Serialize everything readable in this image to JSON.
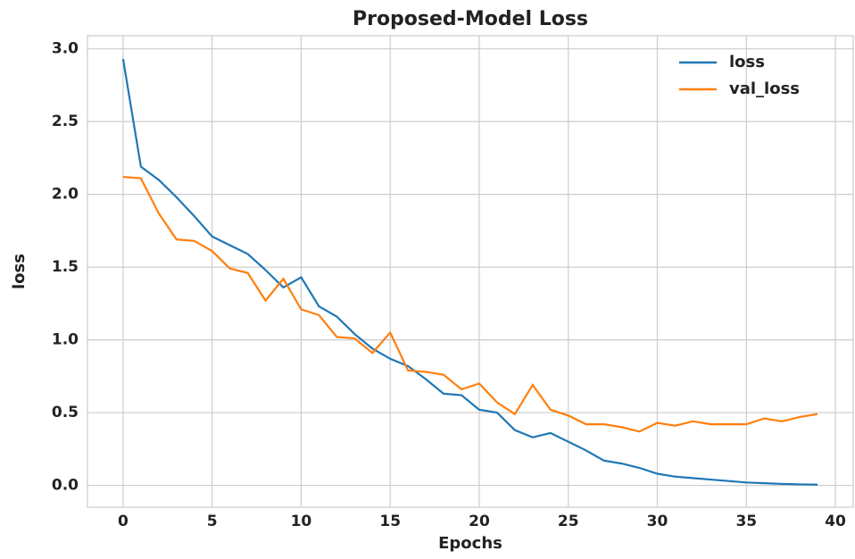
{
  "chart_data": {
    "type": "line",
    "title": "Proposed-Model Loss",
    "xlabel": "Epochs",
    "ylabel": "loss",
    "x": [
      0,
      1,
      2,
      3,
      4,
      5,
      6,
      7,
      8,
      9,
      10,
      11,
      12,
      13,
      14,
      15,
      16,
      17,
      18,
      19,
      20,
      21,
      22,
      23,
      24,
      25,
      26,
      27,
      28,
      29,
      30,
      31,
      32,
      33,
      34,
      35,
      36,
      37,
      38,
      39
    ],
    "series": [
      {
        "name": "loss",
        "color": "#1f77b4",
        "values": [
          2.93,
          2.19,
          2.1,
          1.98,
          1.85,
          1.71,
          1.65,
          1.59,
          1.48,
          1.36,
          1.43,
          1.23,
          1.16,
          1.04,
          0.94,
          0.87,
          0.82,
          0.73,
          0.63,
          0.62,
          0.52,
          0.5,
          0.38,
          0.33,
          0.36,
          0.3,
          0.24,
          0.17,
          0.15,
          0.12,
          0.08,
          0.06,
          0.05,
          0.04,
          0.03,
          0.02,
          0.015,
          0.01,
          0.007,
          0.005
        ]
      },
      {
        "name": "val_loss",
        "color": "#ff7f0e",
        "values": [
          2.12,
          2.11,
          1.87,
          1.69,
          1.68,
          1.61,
          1.49,
          1.46,
          1.27,
          1.42,
          1.21,
          1.17,
          1.02,
          1.01,
          0.91,
          1.05,
          0.79,
          0.78,
          0.76,
          0.66,
          0.7,
          0.57,
          0.49,
          0.69,
          0.52,
          0.48,
          0.42,
          0.42,
          0.4,
          0.37,
          0.43,
          0.41,
          0.44,
          0.42,
          0.42,
          0.42,
          0.46,
          0.44,
          0.47,
          0.49
        ]
      }
    ],
    "xlim": [
      -2,
      41
    ],
    "xticks": [
      0,
      5,
      10,
      15,
      20,
      25,
      30,
      35,
      40
    ],
    "ylim": [
      -0.15,
      3.09
    ],
    "yticks": [
      {
        "value": 0,
        "label": "0.0"
      },
      0.5,
      {
        "value": 1,
        "label": "1.0"
      },
      1.5,
      {
        "value": 2,
        "label": "2.0"
      },
      2.5,
      {
        "value": 3,
        "label": "3.0"
      }
    ],
    "grid": true,
    "legend": "upper right"
  }
}
